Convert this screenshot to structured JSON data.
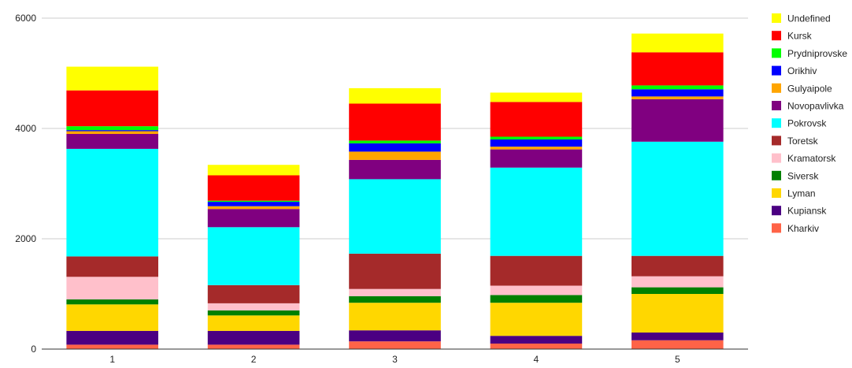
{
  "chart_data": {
    "type": "bar",
    "stacked": true,
    "categories": [
      "1",
      "2",
      "3",
      "4",
      "5"
    ],
    "ylim": [
      0,
      6000
    ],
    "yticks": [
      "0",
      "2000",
      "4000",
      "6000"
    ],
    "grid": true,
    "legend_position": "right",
    "series": [
      {
        "name": "Kharkiv",
        "color": "#ff6347",
        "values": [
          80,
          80,
          140,
          100,
          160
        ]
      },
      {
        "name": "Kupiansk",
        "color": "#4b0082",
        "values": [
          250,
          250,
          200,
          140,
          140
        ]
      },
      {
        "name": "Lyman",
        "color": "#ffd700",
        "values": [
          480,
          280,
          500,
          600,
          700
        ]
      },
      {
        "name": "Siversk",
        "color": "#008000",
        "values": [
          90,
          90,
          120,
          140,
          120
        ]
      },
      {
        "name": "Kramatorsk",
        "color": "#ffc0cb",
        "values": [
          410,
          130,
          130,
          170,
          200
        ]
      },
      {
        "name": "Toretsk",
        "color": "#a52a2a",
        "values": [
          370,
          330,
          640,
          540,
          370
        ]
      },
      {
        "name": "Pokrovsk",
        "color": "#00ffff",
        "values": [
          1950,
          1050,
          1350,
          1600,
          2070
        ]
      },
      {
        "name": "Novopavlivka",
        "color": "#800080",
        "values": [
          270,
          330,
          350,
          330,
          770
        ]
      },
      {
        "name": "Gulyaipole",
        "color": "#ffa500",
        "values": [
          50,
          50,
          150,
          50,
          50
        ]
      },
      {
        "name": "Orikhiv",
        "color": "#0000ff",
        "values": [
          20,
          80,
          150,
          130,
          130
        ]
      },
      {
        "name": "Prydniprovske",
        "color": "#00ff00",
        "values": [
          70,
          20,
          50,
          50,
          70
        ]
      },
      {
        "name": "Kursk",
        "color": "#ff0000",
        "values": [
          650,
          460,
          670,
          630,
          600
        ]
      },
      {
        "name": "Undefined",
        "color": "#ffff00",
        "values": [
          430,
          190,
          280,
          170,
          340
        ]
      }
    ]
  }
}
